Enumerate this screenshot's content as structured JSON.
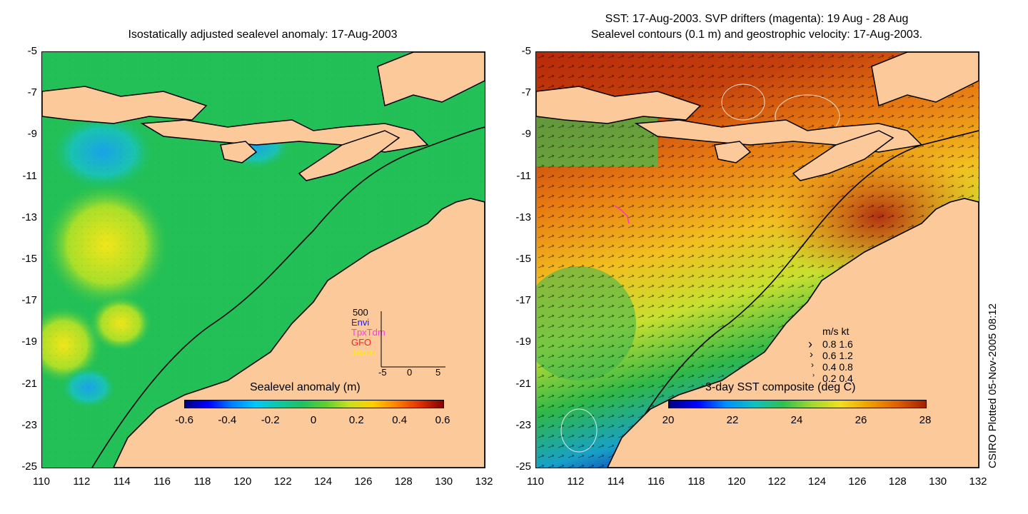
{
  "left_panel": {
    "title": "Isostatically adjusted sealevel anomaly: 17-Aug-2003",
    "y_ticks": [
      "-5",
      "-7",
      "-9",
      "-11",
      "-13",
      "-15",
      "-17",
      "-19",
      "-21",
      "-23",
      "-25"
    ],
    "x_ticks": [
      "110",
      "112",
      "114",
      "116",
      "118",
      "120",
      "122",
      "124",
      "126",
      "128",
      "130",
      "132"
    ],
    "colorbar": {
      "label": "Sealevel anomaly (m)",
      "ticks": [
        "-0.6",
        "-0.4",
        "-0.2",
        "0",
        "0.2",
        "0.4",
        "0.6"
      ]
    },
    "inset_histogram": {
      "top_value": "500",
      "legend": [
        {
          "name": "Envi",
          "color": "#1a1aff"
        },
        {
          "name": "TpxTdm",
          "color": "#ff33ff"
        },
        {
          "name": "GFO",
          "color": "#ff2020"
        },
        {
          "name": "Jason",
          "color": "#ffee00"
        }
      ],
      "x_ticks": [
        "-5",
        "0",
        "5"
      ]
    }
  },
  "right_panel": {
    "title_line1": "SST: 17-Aug-2003. SVP drifters (magenta): 19 Aug - 28 Aug",
    "title_line2": "Sealevel contours (0.1 m) and geostrophic velocity: 17-Aug-2003.",
    "y_ticks": [
      "-5",
      "-7",
      "-9",
      "-11",
      "-13",
      "-15",
      "-17",
      "-19",
      "-21",
      "-23",
      "-25"
    ],
    "x_ticks": [
      "110",
      "112",
      "114",
      "116",
      "118",
      "120",
      "122",
      "124",
      "126",
      "128",
      "130",
      "132"
    ],
    "colorbar": {
      "label": "3-day SST composite (deg C)",
      "ticks": [
        "20",
        "22",
        "24",
        "26",
        "28"
      ]
    },
    "velocity_legend": {
      "header": "m/s  kt",
      "rows": [
        "0.8  1.6",
        "0.6  1.2",
        "0.4  0.8",
        "0.2  0.4"
      ]
    }
  },
  "credit": "CSIRO Plotted 05-Nov-2005 08:12",
  "colors": {
    "land": "#fbc99a",
    "ocean_left": "#22c056",
    "ocean_right_warm": "#e4780f",
    "ocean_right_cool": "#2ab04a",
    "magenta": "#ff33cc"
  }
}
